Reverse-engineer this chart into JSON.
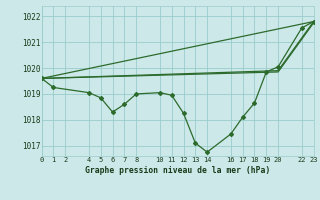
{
  "title": "Graphe pression niveau de la mer (hPa)",
  "bg_color": "#cce8e8",
  "grid_color": "#99cccc",
  "line_color": "#2d6b2d",
  "xlim": [
    0,
    23
  ],
  "ylim": [
    1016.6,
    1022.4
  ],
  "yticks": [
    1017,
    1018,
    1019,
    1020,
    1021,
    1022
  ],
  "xticks": [
    0,
    1,
    2,
    4,
    5,
    6,
    7,
    8,
    10,
    11,
    12,
    13,
    14,
    16,
    17,
    18,
    19,
    20,
    22,
    23
  ],
  "series_main_x": [
    0,
    1,
    4,
    5,
    6,
    7,
    8,
    10,
    11,
    12,
    13,
    14,
    16,
    17,
    18,
    19,
    20,
    22,
    23
  ],
  "series_main_y": [
    1019.6,
    1019.25,
    1019.05,
    1018.85,
    1018.3,
    1018.6,
    1019.0,
    1019.05,
    1018.95,
    1018.25,
    1017.1,
    1016.75,
    1017.45,
    1018.1,
    1018.65,
    1019.85,
    1020.05,
    1021.55,
    1021.8
  ],
  "series2_x": [
    0,
    23
  ],
  "series2_y": [
    1019.6,
    1021.8
  ],
  "series3_x": [
    0,
    20,
    23
  ],
  "series3_y": [
    1019.6,
    1019.85,
    1021.75
  ],
  "series4_x": [
    0,
    20,
    23
  ],
  "series4_y": [
    1019.6,
    1019.9,
    1021.8
  ]
}
